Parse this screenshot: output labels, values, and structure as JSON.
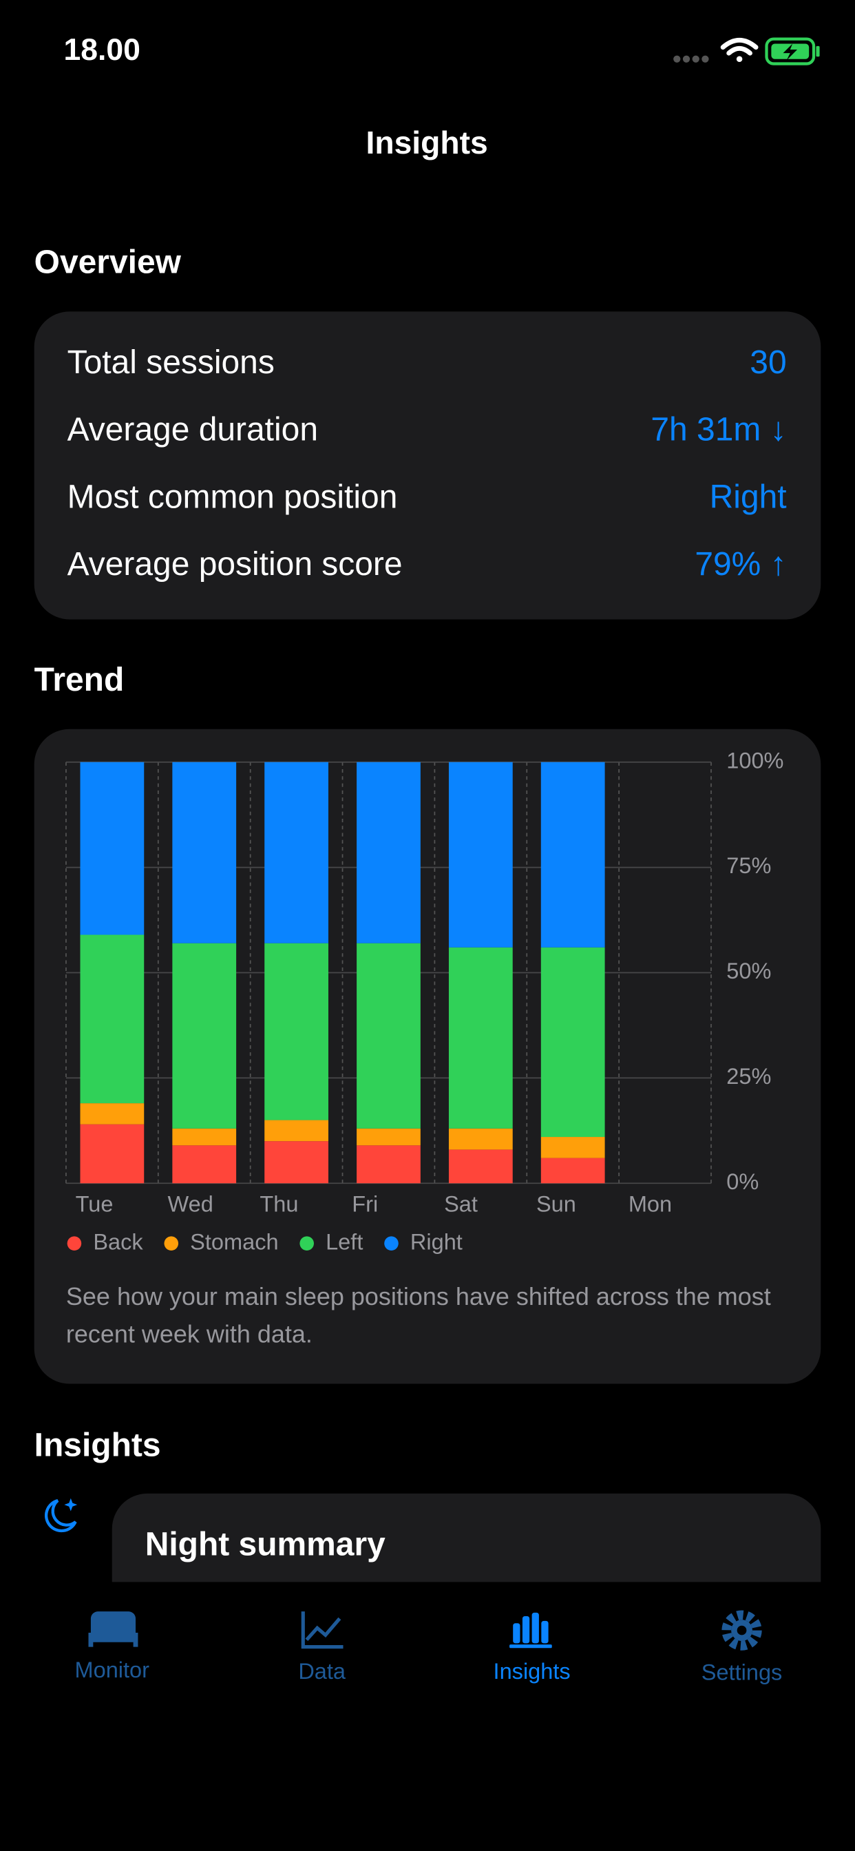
{
  "status_bar": {
    "time": "18.00"
  },
  "header": {
    "title": "Insights"
  },
  "overview": {
    "heading": "Overview",
    "rows": [
      {
        "label": "Total sessions",
        "value": "30"
      },
      {
        "label": "Average duration",
        "value": "7h 31m ↓"
      },
      {
        "label": "Most common position",
        "value": "Right"
      },
      {
        "label": "Average position score",
        "value": "79% ↑"
      }
    ]
  },
  "trend": {
    "heading": "Trend",
    "caption": "See how your main sleep positions have shifted across the most recent week with data."
  },
  "chart_data": {
    "type": "stacked_bar",
    "categories": [
      "Tue",
      "Wed",
      "Thu",
      "Fri",
      "Sat",
      "Sun",
      "Mon"
    ],
    "series": [
      {
        "name": "Back",
        "color": "#ff453a",
        "values": [
          14,
          9,
          10,
          9,
          8,
          6,
          null
        ]
      },
      {
        "name": "Stomach",
        "color": "#ff9f0a",
        "values": [
          5,
          4,
          5,
          4,
          5,
          5,
          null
        ]
      },
      {
        "name": "Left",
        "color": "#30d158",
        "values": [
          40,
          44,
          42,
          44,
          43,
          45,
          null
        ]
      },
      {
        "name": "Right",
        "color": "#0a84ff",
        "values": [
          41,
          43,
          43,
          43,
          44,
          44,
          null
        ]
      }
    ],
    "ylim": [
      0,
      100
    ],
    "yticks": [
      {
        "value": 0,
        "label": "0%"
      },
      {
        "value": 25,
        "label": "25%"
      },
      {
        "value": 50,
        "label": "50%"
      },
      {
        "value": 75,
        "label": "75%"
      },
      {
        "value": 100,
        "label": "100%"
      }
    ],
    "grid": true,
    "legend": "bottom"
  },
  "insights": {
    "heading": "Insights",
    "cards": [
      {
        "title": "Night summary"
      }
    ]
  },
  "tab_bar": {
    "tabs": [
      {
        "label": "Monitor"
      },
      {
        "label": "Data"
      },
      {
        "label": "Insights"
      },
      {
        "label": "Settings"
      }
    ]
  }
}
